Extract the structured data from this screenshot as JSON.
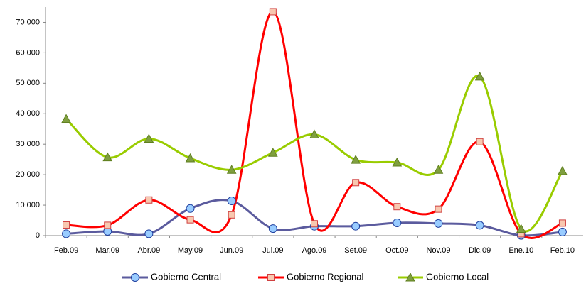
{
  "chart_data": {
    "type": "line",
    "categories": [
      "Feb.09",
      "Mar.09",
      "Abr.09",
      "May.09",
      "Jun.09",
      "Jul.09",
      "Ago.09",
      "Set.09",
      "Oct.09",
      "Nov.09",
      "Dic.09",
      "Ene.10",
      "Feb.10"
    ],
    "series": [
      {
        "name": "Gobierno Central",
        "color": "#5b5b9e",
        "marker": "circle",
        "marker_fill": "#99ccff",
        "marker_stroke": "#1f3f9f",
        "values": [
          600,
          1400,
          600,
          8900,
          11400,
          2300,
          3100,
          3100,
          4200,
          4000,
          3400,
          100,
          1200
        ]
      },
      {
        "name": "Gobierno Regional",
        "color": "#ff0000",
        "marker": "square",
        "marker_fill": "#f8c8b0",
        "marker_stroke": "#d04040",
        "values": [
          3500,
          3400,
          11700,
          5200,
          6800,
          73500,
          3900,
          17400,
          9500,
          8700,
          30800,
          600,
          4100
        ]
      },
      {
        "name": "Gobierno Local",
        "color": "#99cc00",
        "marker": "triangle",
        "marker_fill": "#7f9f3f",
        "marker_stroke": "#5f7f1f",
        "values": [
          38300,
          25700,
          31800,
          25400,
          21600,
          27200,
          33200,
          24900,
          24000,
          21600,
          52200,
          2200,
          21200
        ]
      }
    ],
    "ylim": [
      0,
      75000
    ],
    "yticks": [
      0,
      {
        "value": 10000,
        "label": "10 000"
      },
      {
        "value": 20000,
        "label": "20 000"
      },
      {
        "value": 30000,
        "label": "30 000"
      },
      {
        "value": 40000,
        "label": "40 000"
      },
      {
        "value": 50000,
        "label": "50 000"
      },
      {
        "value": 60000,
        "label": "60 000"
      },
      {
        "value": 70000,
        "label": "70 000"
      }
    ],
    "grid": false,
    "smooth": true,
    "legend": "bottom"
  }
}
